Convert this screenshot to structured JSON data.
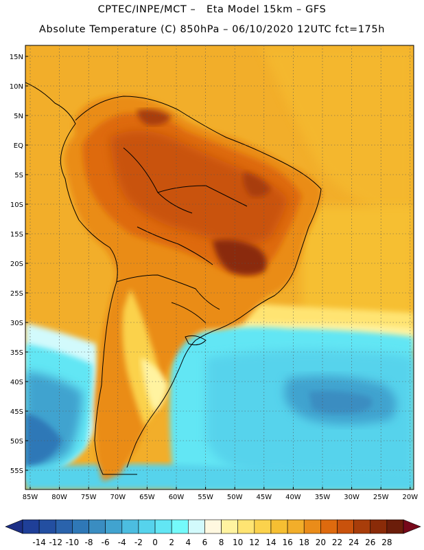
{
  "header": {
    "line1": "CPTEC/INPE/MCT –   Eta Model 15km – GFS",
    "line2": "Absolute Temperature (C) 850hPa – 06/10/2020 12UTC fct=175h"
  },
  "map": {
    "lat_labels": [
      "15N",
      "10N",
      "5N",
      "EQ",
      "5S",
      "10S",
      "15S",
      "20S",
      "25S",
      "30S",
      "35S",
      "40S",
      "45S",
      "50S",
      "55S"
    ],
    "lon_labels": [
      "85W",
      "80W",
      "75W",
      "70W",
      "65W",
      "60W",
      "55W",
      "50W",
      "45W",
      "40W",
      "35W",
      "30W",
      "25W",
      "20W"
    ],
    "ocean_color": "#f2ae2a",
    "land_hot_color": "#c1510f",
    "cold_ocean_color": "#57dff0"
  },
  "colorbar": {
    "labels": [
      "-14",
      "-12",
      "-10",
      "-8",
      "-6",
      "-4",
      "-2",
      "0",
      "2",
      "4",
      "6",
      "8",
      "10",
      "12",
      "14",
      "16",
      "18",
      "20",
      "22",
      "24",
      "26",
      "28"
    ],
    "colors": [
      "#1f3f98",
      "#234fa1",
      "#2a63ac",
      "#2f78b7",
      "#3a8dc1",
      "#41a3cf",
      "#4cbde0",
      "#56d3ec",
      "#62e6f4",
      "#74fafa",
      "#d2fafc",
      "#fff8e0",
      "#fff3a0",
      "#ffe472",
      "#fbd24c",
      "#f6bf32",
      "#f2ae2a",
      "#ea8c19",
      "#de6a0e",
      "#c9520c",
      "#a83d0a",
      "#8a2b08",
      "#6b1d0a"
    ],
    "under_color": "#1c2f86",
    "over_color": "#76081a"
  }
}
